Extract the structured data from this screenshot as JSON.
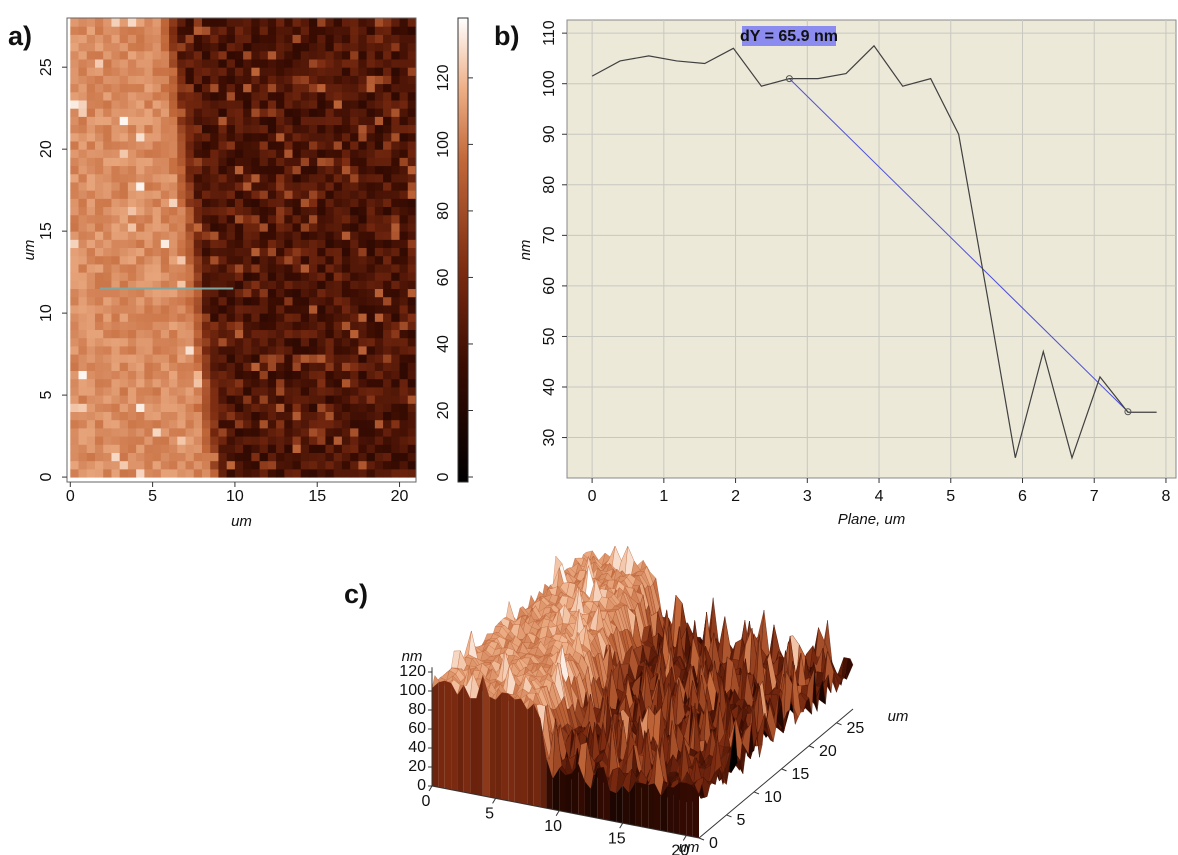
{
  "chart_data": [
    {
      "type": "heatmap",
      "label": "a)",
      "xlabel": "um",
      "ylabel": "um",
      "xlim": [
        -0.2,
        21
      ],
      "ylim": [
        -0.3,
        28
      ],
      "xticks": [
        0,
        5,
        10,
        15,
        20
      ],
      "yticks": [
        0,
        5,
        10,
        15,
        20,
        25
      ],
      "colorbar": {
        "lim": [
          -1.5,
          138
        ],
        "ticks": [
          0,
          20,
          40,
          60,
          80,
          100,
          120
        ]
      },
      "profile_line": {
        "x": [
          1.8,
          9.9
        ],
        "y": [
          11.5,
          11.5
        ],
        "color": "#7fa6a0"
      }
    },
    {
      "type": "line",
      "label": "b)",
      "xlabel": "Plane, um",
      "ylabel": "nm",
      "x": [
        0,
        0.39,
        0.79,
        1.18,
        1.57,
        1.97,
        2.36,
        2.75,
        3.15,
        3.54,
        3.93,
        4.33,
        4.72,
        5.11,
        5.51,
        5.9,
        6.29,
        6.69,
        7.08,
        7.47,
        7.87
      ],
      "series": [
        {
          "color": "#404040",
          "values": [
            101.5,
            104.5,
            105.5,
            104.5,
            104,
            107,
            99.5,
            101,
            101,
            102,
            107.5,
            99.5,
            101,
            90,
            58,
            26,
            47,
            26,
            42,
            35,
            35
          ]
        }
      ],
      "xlim": [
        -0.35,
        8.14
      ],
      "ylim": [
        22,
        112.6
      ],
      "xticks": [
        0,
        1,
        2,
        3,
        4,
        5,
        6,
        7,
        8
      ],
      "yticks": [
        30,
        40,
        50,
        60,
        70,
        80,
        90,
        100,
        110
      ],
      "grid": true,
      "background": "#ece9d8",
      "annotation": {
        "text": "dY = 65.9 nm",
        "x": [
          2.75,
          7.47
        ],
        "y": [
          101,
          35.1
        ],
        "color": "#5050d8",
        "box_color": "#8c8cf0"
      }
    },
    {
      "type": "surface",
      "label": "c)",
      "zlabel": "nm",
      "xlabel": "um",
      "ylabel": "um",
      "xlim": [
        0,
        21
      ],
      "ylim": [
        0,
        28
      ],
      "zticks": [
        0,
        20,
        40,
        60,
        80,
        100,
        120
      ],
      "xticks": [
        0,
        5,
        10,
        15,
        20
      ],
      "yticks": [
        0,
        5,
        10,
        15,
        20,
        25
      ]
    }
  ]
}
